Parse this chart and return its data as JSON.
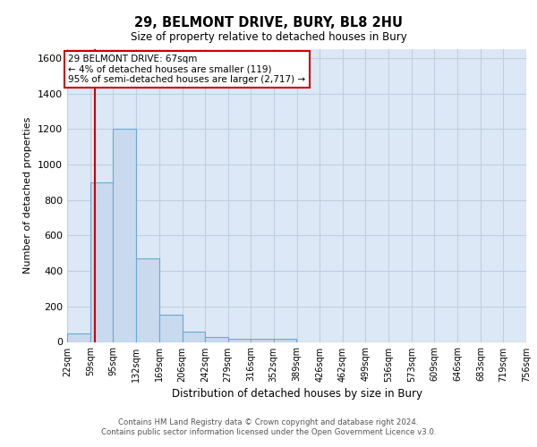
{
  "title": "29, BELMONT DRIVE, BURY, BL8 2HU",
  "subtitle": "Size of property relative to detached houses in Bury",
  "xlabel": "Distribution of detached houses by size in Bury",
  "ylabel": "Number of detached properties",
  "bin_edges": [
    22,
    59,
    95,
    132,
    169,
    206,
    242,
    279,
    316,
    352,
    389,
    426,
    462,
    499,
    536,
    573,
    609,
    646,
    683,
    719,
    756
  ],
  "bin_labels": [
    "22sqm",
    "59sqm",
    "95sqm",
    "132sqm",
    "169sqm",
    "206sqm",
    "242sqm",
    "279sqm",
    "316sqm",
    "352sqm",
    "389sqm",
    "426sqm",
    "462sqm",
    "499sqm",
    "536sqm",
    "573sqm",
    "609sqm",
    "646sqm",
    "683sqm",
    "719sqm",
    "756sqm"
  ],
  "bar_heights": [
    50,
    900,
    1200,
    470,
    155,
    60,
    30,
    20,
    20,
    20,
    0,
    0,
    0,
    0,
    0,
    0,
    0,
    0,
    0,
    0
  ],
  "bar_color": "#c9d9ee",
  "bar_edge_color": "#6aaad4",
  "ylim": [
    0,
    1650
  ],
  "yticks": [
    0,
    200,
    400,
    600,
    800,
    1000,
    1200,
    1400,
    1600
  ],
  "property_size": 67,
  "annotation_text": "29 BELMONT DRIVE: 67sqm\n← 4% of detached houses are smaller (119)\n95% of semi-detached houses are larger (2,717) →",
  "annotation_box_color": "#ffffff",
  "annotation_box_edge": "#cc0000",
  "property_line_color": "#cc0000",
  "background_color": "#dce8f5",
  "grid_color": "#c0cfe0",
  "footer_line1": "Contains HM Land Registry data © Crown copyright and database right 2024.",
  "footer_line2": "Contains public sector information licensed under the Open Government Licence v3.0."
}
